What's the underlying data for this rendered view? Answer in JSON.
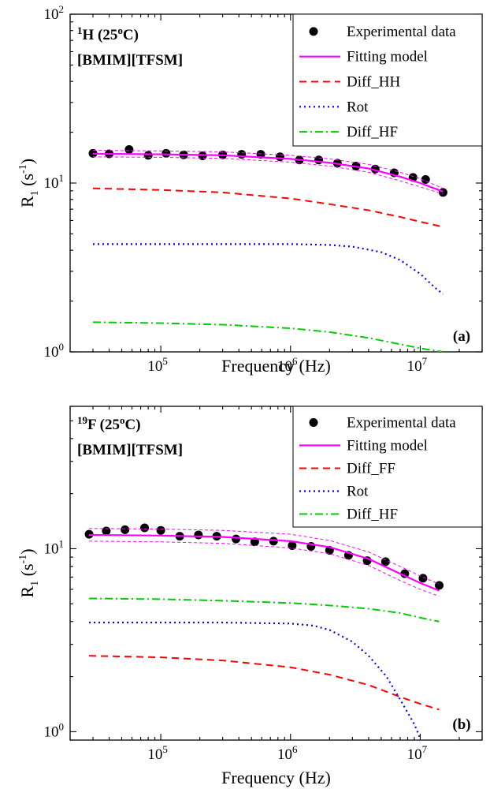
{
  "chart_data": [
    {
      "type": "line",
      "panel_tag": "(a)",
      "corner_label": {
        "nucleus_sup": "1",
        "nucleus": "H (25",
        "degree_sup": "o",
        "temp_tail": "C)",
        "sample": "[BMIM][TFSM]"
      },
      "xlabel": "Frequency (Hz)",
      "ylabel": {
        "main": "R",
        "sub": "1",
        "unit_open": " (s",
        "unit_sup": "-1",
        "unit_close": ")"
      },
      "xscale": "log",
      "yscale": "log",
      "xlim": [
        20000,
        30000000
      ],
      "ylim": [
        1,
        100
      ],
      "x_ticks": [
        {
          "base": "10",
          "exp": "5",
          "value": 100000
        },
        {
          "base": "10",
          "exp": "6",
          "value": 1000000
        },
        {
          "base": "10",
          "exp": "7",
          "value": 10000000
        }
      ],
      "y_ticks": [
        {
          "base": "10",
          "exp": "0",
          "value": 1
        },
        {
          "base": "10",
          "exp": "1",
          "value": 10
        },
        {
          "base": "10",
          "exp": "2",
          "value": 100
        }
      ],
      "legend_position": "top-right",
      "legend": [
        {
          "label": "Experimental data",
          "style": "marker",
          "color": "#000000"
        },
        {
          "label": "Fitting model",
          "style": "solid",
          "color": "#ff00ff"
        },
        {
          "label": "Diff_HH",
          "style": "dashed",
          "color": "#ff0000"
        },
        {
          "label": "Rot",
          "style": "dotted",
          "color": "#0000ff"
        },
        {
          "label": "Diff_HF",
          "style": "dashdot",
          "color": "#00cc00"
        }
      ],
      "series": [
        {
          "name": "Experimental data",
          "style": "marker",
          "color": "#000000",
          "x": [
            30000,
            40000,
            57000,
            80000,
            110000,
            150000,
            210000,
            300000,
            420000,
            590000,
            830000,
            1170000,
            1650000,
            2300000,
            3200000,
            4500000,
            6300000,
            8800000,
            11000000,
            15000000
          ],
          "y": [
            15.0,
            14.9,
            15.8,
            14.6,
            15.0,
            14.7,
            14.5,
            14.7,
            14.8,
            14.8,
            14.3,
            13.7,
            13.7,
            13.1,
            12.6,
            12.1,
            11.5,
            10.8,
            10.5,
            8.8
          ]
        },
        {
          "name": "Fitting model",
          "style": "solid",
          "color": "#ff00ff",
          "x": [
            30000,
            100000,
            300000,
            1000000,
            2000000,
            4000000,
            7000000,
            10000000,
            15000000
          ],
          "y": [
            14.9,
            14.8,
            14.6,
            13.9,
            13.2,
            12.2,
            10.9,
            10.0,
            8.9
          ]
        },
        {
          "name": "Fit band upper",
          "style": "thin-dashed",
          "color": "#ff00ff",
          "x": [
            30000,
            100000,
            300000,
            1000000,
            2000000,
            4000000,
            7000000,
            10000000,
            15000000
          ],
          "y": [
            15.6,
            15.5,
            15.3,
            14.6,
            13.9,
            12.9,
            11.6,
            10.6,
            9.3
          ]
        },
        {
          "name": "Fit band lower",
          "style": "thin-dashed",
          "color": "#ff00ff",
          "x": [
            30000,
            100000,
            300000,
            1000000,
            2000000,
            4000000,
            7000000,
            10000000,
            15000000
          ],
          "y": [
            14.3,
            14.2,
            14.0,
            13.3,
            12.6,
            11.6,
            10.3,
            9.5,
            8.6
          ]
        },
        {
          "name": "Diff_HH",
          "style": "dashed",
          "color": "#ff0000",
          "x": [
            30000,
            100000,
            300000,
            1000000,
            2000000,
            4000000,
            7000000,
            10000000,
            15000000
          ],
          "y": [
            9.3,
            9.1,
            8.8,
            8.1,
            7.5,
            6.9,
            6.3,
            5.9,
            5.5
          ]
        },
        {
          "name": "Rot",
          "style": "dotted",
          "color": "#0000ff",
          "x": [
            30000,
            100000,
            300000,
            1000000,
            2000000,
            3000000,
            5000000,
            7000000,
            10000000,
            13000000,
            15000000
          ],
          "y": [
            4.35,
            4.35,
            4.35,
            4.35,
            4.3,
            4.2,
            3.9,
            3.5,
            2.9,
            2.4,
            2.2
          ]
        },
        {
          "name": "Diff_HF",
          "style": "dashdot",
          "color": "#00cc00",
          "x": [
            30000,
            100000,
            300000,
            1000000,
            2000000,
            4000000,
            7000000,
            10000000,
            15000000
          ],
          "y": [
            1.5,
            1.48,
            1.45,
            1.38,
            1.31,
            1.21,
            1.11,
            1.05,
            1.0
          ]
        }
      ]
    },
    {
      "type": "line",
      "panel_tag": "(b)",
      "corner_label": {
        "nucleus_sup": "19",
        "nucleus": "F (25",
        "degree_sup": "o",
        "temp_tail": "C)",
        "sample": "[BMIM][TFSM]"
      },
      "xlabel": "Frequency (Hz)",
      "ylabel": {
        "main": "R",
        "sub": "1",
        "unit_open": " (s",
        "unit_sup": "-1",
        "unit_close": ")"
      },
      "xscale": "log",
      "yscale": "log",
      "xlim": [
        20000,
        30000000
      ],
      "ylim": [
        0.9,
        60
      ],
      "x_ticks": [
        {
          "base": "10",
          "exp": "5",
          "value": 100000
        },
        {
          "base": "10",
          "exp": "6",
          "value": 1000000
        },
        {
          "base": "10",
          "exp": "7",
          "value": 10000000
        }
      ],
      "y_ticks": [
        {
          "base": "10",
          "exp": "0",
          "value": 1
        },
        {
          "base": "10",
          "exp": "1",
          "value": 10
        }
      ],
      "legend_position": "top-right",
      "legend": [
        {
          "label": "Experimental data",
          "style": "marker",
          "color": "#000000"
        },
        {
          "label": "Fitting model",
          "style": "solid",
          "color": "#ff00ff"
        },
        {
          "label": "Diff_FF",
          "style": "dashed",
          "color": "#ff0000"
        },
        {
          "label": "Rot",
          "style": "dotted",
          "color": "#0000ff"
        },
        {
          "label": "Diff_HF",
          "style": "dashdot",
          "color": "#00cc00"
        }
      ],
      "series": [
        {
          "name": "Experimental data",
          "style": "marker",
          "color": "#000000",
          "x": [
            28000,
            38000,
            53000,
            75000,
            100000,
            140000,
            195000,
            270000,
            380000,
            530000,
            740000,
            1030000,
            1440000,
            2000000,
            2800000,
            3900000,
            5400000,
            7600000,
            10500000,
            14000000
          ],
          "y": [
            12.0,
            12.5,
            12.7,
            13.0,
            12.6,
            11.7,
            11.9,
            11.7,
            11.3,
            10.9,
            11.0,
            10.4,
            10.3,
            9.8,
            9.2,
            8.6,
            8.5,
            7.3,
            6.9,
            6.3
          ]
        },
        {
          "name": "Fitting model",
          "style": "solid",
          "color": "#ff00ff",
          "x": [
            28000,
            100000,
            300000,
            1000000,
            2000000,
            4000000,
            7000000,
            10000000,
            14000000
          ],
          "y": [
            11.9,
            11.8,
            11.6,
            11.0,
            10.2,
            8.8,
            7.3,
            6.5,
            5.9
          ]
        },
        {
          "name": "Fit band upper",
          "style": "thin-dashed",
          "color": "#ff00ff",
          "x": [
            28000,
            100000,
            300000,
            1000000,
            2000000,
            4000000,
            7000000,
            10000000,
            14000000
          ],
          "y": [
            12.9,
            12.8,
            12.6,
            12.0,
            11.1,
            9.6,
            8.0,
            7.1,
            6.4
          ]
        },
        {
          "name": "Fit band lower",
          "style": "thin-dashed",
          "color": "#ff00ff",
          "x": [
            28000,
            100000,
            300000,
            1000000,
            2000000,
            4000000,
            7000000,
            10000000,
            14000000
          ],
          "y": [
            11.0,
            10.9,
            10.7,
            10.1,
            9.4,
            8.1,
            6.7,
            6.0,
            5.5
          ]
        },
        {
          "name": "Diff_FF",
          "style": "dashed",
          "color": "#ff0000",
          "x": [
            28000,
            100000,
            300000,
            1000000,
            2000000,
            4000000,
            7000000,
            10000000,
            14000000
          ],
          "y": [
            2.6,
            2.55,
            2.45,
            2.25,
            2.05,
            1.8,
            1.55,
            1.42,
            1.32
          ]
        },
        {
          "name": "Rot",
          "style": "dotted",
          "color": "#0000ff",
          "x": [
            28000,
            100000,
            300000,
            1000000,
            1500000,
            2000000,
            3000000,
            4000000,
            5500000,
            7000000,
            9000000,
            10000000
          ],
          "y": [
            3.95,
            3.95,
            3.95,
            3.9,
            3.8,
            3.6,
            3.1,
            2.6,
            2.0,
            1.5,
            1.1,
            0.92
          ]
        },
        {
          "name": "Diff_HF",
          "style": "dashdot",
          "color": "#00cc00",
          "x": [
            28000,
            100000,
            300000,
            1000000,
            2000000,
            4000000,
            7000000,
            10000000,
            14000000
          ],
          "y": [
            5.35,
            5.3,
            5.2,
            5.05,
            4.9,
            4.7,
            4.45,
            4.2,
            4.0
          ]
        }
      ]
    }
  ]
}
